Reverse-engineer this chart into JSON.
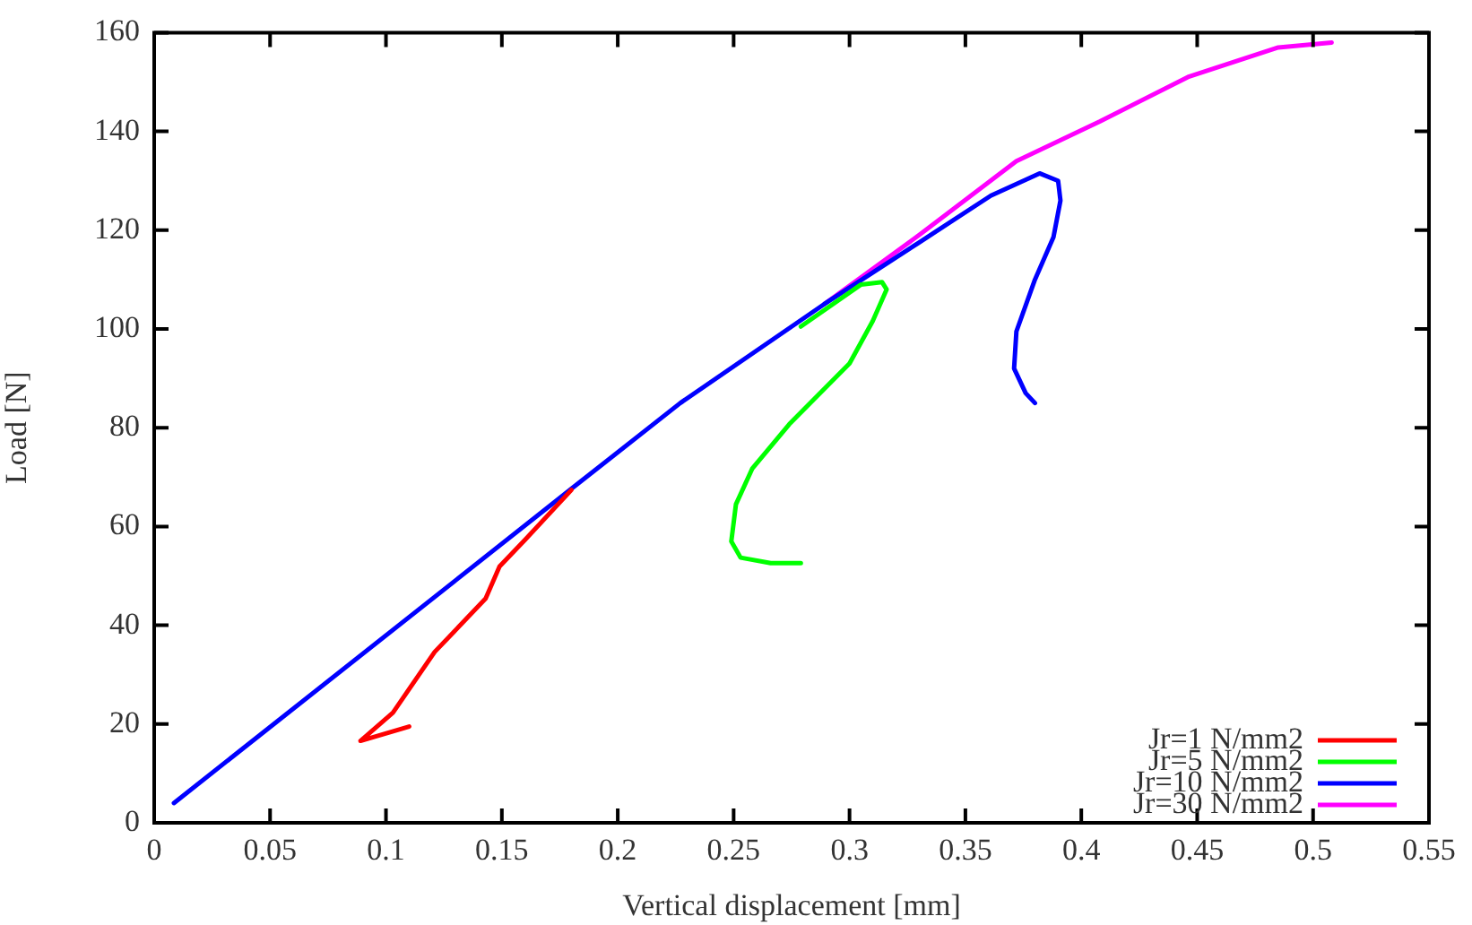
{
  "chart_data": {
    "type": "line",
    "xlabel": "Vertical displacement [mm]",
    "ylabel": "Load [N]",
    "xlim": [
      0,
      0.55
    ],
    "xticks": [
      0,
      0.05,
      0.1,
      0.15,
      0.2,
      0.25,
      0.3,
      0.35,
      0.4,
      0.45,
      0.5,
      0.55
    ],
    "ylim": [
      0,
      160
    ],
    "yticks": [
      0,
      20,
      40,
      60,
      80,
      100,
      120,
      140,
      160
    ],
    "legend": "bottom right",
    "marker": "none",
    "line_style": "solid",
    "series": [
      {
        "name": "Jr=1 N/mm2",
        "color": "#ff0000",
        "x": [
          0.11,
          0.089,
          0.103,
          0.121,
          0.143,
          0.149,
          0.16,
          0.18
        ],
        "values": [
          19.5,
          16.6,
          22.3,
          34.6,
          45.4,
          51.9,
          57.3,
          67.4
        ]
      },
      {
        "name": "Jr=5 N/mm2",
        "color": "#00ff00",
        "x": [
          0.279,
          0.305,
          0.314,
          0.316,
          0.31,
          0.3,
          0.274,
          0.258,
          0.251,
          0.249,
          0.253,
          0.266,
          0.279
        ],
        "values": [
          100.5,
          109,
          109.5,
          108,
          101.6,
          93,
          80.7,
          71.7,
          64.5,
          57,
          53.7,
          52.6,
          52.6
        ]
      },
      {
        "name": "Jr=10 N/mm2",
        "color": "#0000ff",
        "x": [
          0.0085,
          0.181,
          0.227,
          0.289,
          0.33,
          0.361,
          0.382,
          0.39,
          0.391,
          0.388,
          0.38,
          0.372,
          0.371,
          0.376,
          0.38
        ],
        "values": [
          4,
          68,
          85,
          105,
          117.5,
          127,
          131.5,
          130,
          126,
          118.6,
          110,
          99.5,
          92,
          87,
          85
        ]
      },
      {
        "name": "Jr=30 N/mm2",
        "color": "#ff00ff",
        "x": [
          0.289,
          0.33,
          0.372,
          0.408,
          0.446,
          0.485,
          0.508
        ],
        "values": [
          105,
          119,
          134,
          142,
          151,
          157,
          158
        ]
      }
    ]
  }
}
